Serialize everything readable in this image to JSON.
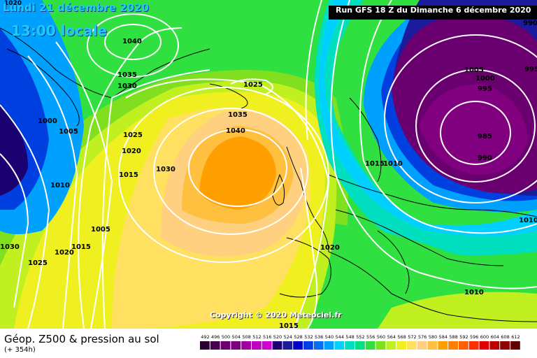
{
  "header": {
    "date": "Lundi 21 décembre 2020",
    "time": "13:00 locale",
    "run": "Run GFS 18 Z du Dimanche 6 décembre 2020"
  },
  "copyright": "Copyright © 2020 Meteociel.fr",
  "legend": {
    "title": "Géop. Z500 & pression au sol",
    "subtitle": "(+ 354h)",
    "scale_values": [
      "492",
      "496",
      "500",
      "504",
      "508",
      "512",
      "516",
      "520",
      "524",
      "528",
      "532",
      "536",
      "540",
      "544",
      "548",
      "552",
      "556",
      "560",
      "564",
      "568",
      "572",
      "576",
      "580",
      "584",
      "588",
      "592",
      "596",
      "600",
      "604",
      "608",
      "612"
    ],
    "scale_colors": [
      "#2a0030",
      "#4a0050",
      "#6a0070",
      "#800080",
      "#a000a0",
      "#c000c0",
      "#d000d0",
      "#1a0070",
      "#1a1a9a",
      "#0000c8",
      "#0040e0",
      "#0070f0",
      "#00a0ff",
      "#00d0ff",
      "#00e0c0",
      "#00e080",
      "#30e040",
      "#80e020",
      "#c0f020",
      "#f0f020",
      "#ffe060",
      "#ffd080",
      "#ffc040",
      "#ffa000",
      "#ff8000",
      "#ff6000",
      "#ff3000",
      "#e00000",
      "#c00000",
      "#900000",
      "#600000"
    ]
  },
  "isobar_labels": [
    "1020",
    "1040",
    "1035",
    "1030",
    "1025",
    "1000",
    "1005",
    "1025",
    "1020",
    "1015",
    "1030",
    "1010",
    "1005",
    "1015",
    "1020",
    "1025",
    "1030",
    "1035",
    "1040",
    "1025",
    "1015",
    "1010",
    "1020",
    "1010",
    "1015",
    "990",
    "995",
    "1005",
    "1000",
    "995",
    "985",
    "990",
    "1010"
  ],
  "colors": {
    "low_pressure": "#800080",
    "high_pressure": "#ffa000",
    "isobar": "#ffffff",
    "coastline": "#000000"
  }
}
